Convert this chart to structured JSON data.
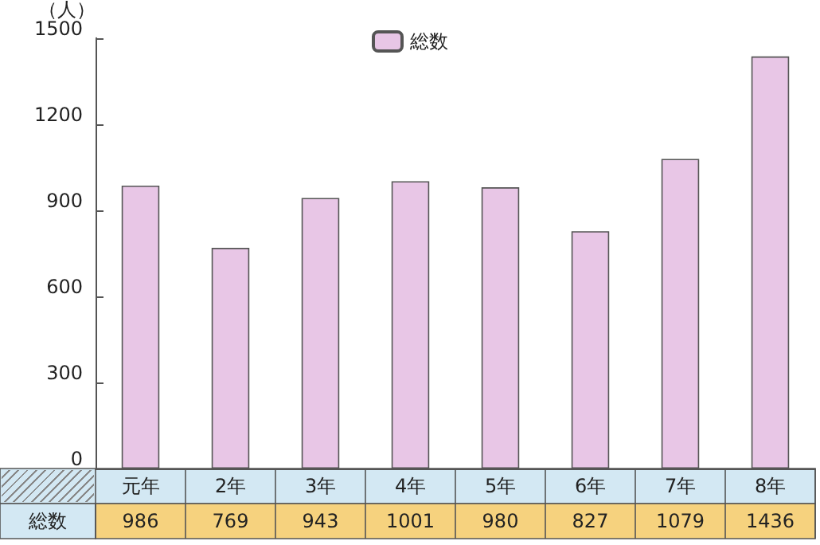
{
  "chart_data": {
    "type": "bar",
    "ylabel": "（人）",
    "categories": [
      "元年",
      "2年",
      "3年",
      "4年",
      "5年",
      "6年",
      "7年",
      "8年"
    ],
    "series": [
      {
        "name": "総数",
        "color": "#e8c6e6",
        "values": [
          986,
          769,
          943,
          1001,
          980,
          827,
          1079,
          1436
        ]
      }
    ],
    "ylim": [
      0,
      1500
    ],
    "yticks": [
      0,
      300,
      600,
      900,
      1200,
      1500
    ],
    "grid": false,
    "legend": "top",
    "data_labels": true
  }
}
